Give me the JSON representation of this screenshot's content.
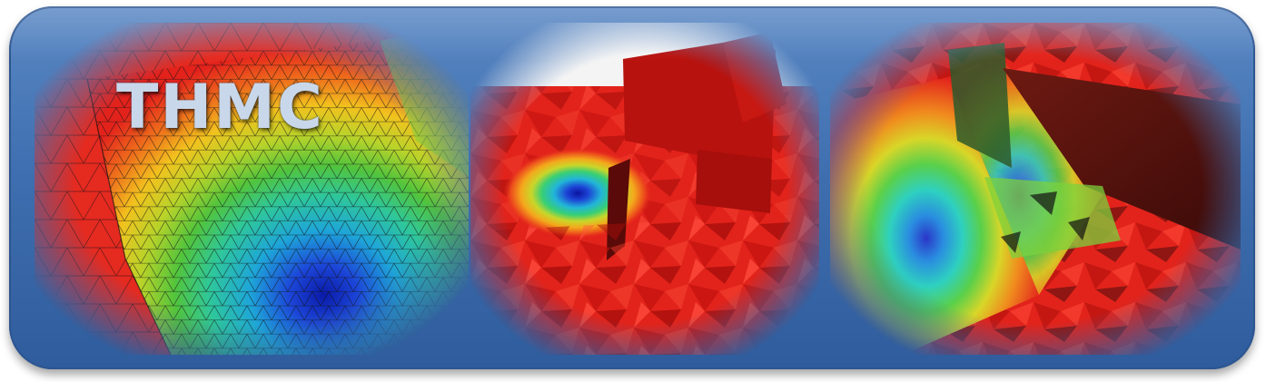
{
  "banner": {
    "title": "THMC",
    "colors": {
      "frame": "#3f6fb0",
      "title_text": "#c9d7ea",
      "field_high": "#e8231e",
      "field_low": "#1b2fb4"
    },
    "panels": [
      {
        "name": "mesh-colormap-closeup"
      },
      {
        "name": "fracture-plane-contour-view"
      },
      {
        "name": "fractured-domain-gradient-view"
      }
    ]
  }
}
